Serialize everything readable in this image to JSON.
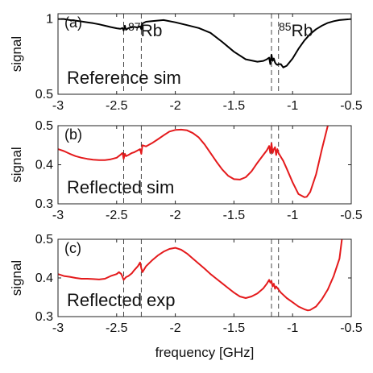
{
  "figure": {
    "xlabel": "frequency [GHz]",
    "annotations": {
      "rb87_mass": "87",
      "rb87_symbol": "Rb",
      "rb85_mass": "85",
      "rb85_symbol": "Rb"
    }
  },
  "chart_data": [
    {
      "type": "line",
      "panel_label": "(a)",
      "inset_label": "Reference sim",
      "ylabel": "signal",
      "xlim": [
        -3,
        -0.5
      ],
      "ylim": [
        0.5,
        1.05
      ],
      "yscale": "log",
      "xticks": [
        -3,
        -2.5,
        -2,
        -1.5,
        -1,
        -0.5
      ],
      "xtick_labels": [
        "-3",
        "-2.5",
        "-2",
        "-1.5",
        "-1",
        "-0.5"
      ],
      "yticks": [
        0.5,
        1
      ],
      "ytick_labels": [
        "0.5",
        "1"
      ],
      "color": "#000000",
      "reference_lines_ghz": [
        -2.44,
        -2.29,
        -1.18,
        -1.12
      ],
      "series": [
        {
          "x": [
            -3.0,
            -2.95,
            -2.9,
            -2.85,
            -2.8,
            -2.75,
            -2.7,
            -2.65,
            -2.6,
            -2.55,
            -2.5,
            -2.47,
            -2.45,
            -2.44,
            -2.43,
            -2.42,
            -2.4,
            -2.35,
            -2.32,
            -2.3,
            -2.29,
            -2.28,
            -2.25,
            -2.2,
            -2.1,
            -2.0,
            -1.9,
            -1.8,
            -1.7,
            -1.6,
            -1.5,
            -1.4,
            -1.3,
            -1.25,
            -1.22,
            -1.2,
            -1.19,
            -1.18,
            -1.17,
            -1.16,
            -1.15,
            -1.14,
            -1.13,
            -1.12,
            -1.1,
            -1.08,
            -1.05,
            -1.0,
            -0.95,
            -0.9,
            -0.85,
            -0.8,
            -0.75,
            -0.7,
            -0.65,
            -0.6,
            -0.55,
            -0.5
          ],
          "y": [
            1.0,
            1.0,
            0.99,
            0.985,
            0.978,
            0.97,
            0.962,
            0.952,
            0.94,
            0.928,
            0.918,
            0.913,
            0.92,
            0.9,
            0.94,
            0.905,
            0.92,
            0.93,
            0.925,
            0.935,
            0.91,
            0.96,
            0.975,
            0.98,
            0.99,
            0.97,
            0.945,
            0.92,
            0.88,
            0.81,
            0.74,
            0.69,
            0.675,
            0.68,
            0.69,
            0.7,
            0.66,
            0.72,
            0.68,
            0.695,
            0.67,
            0.66,
            0.655,
            0.66,
            0.66,
            0.64,
            0.65,
            0.695,
            0.76,
            0.82,
            0.87,
            0.91,
            0.94,
            0.965,
            0.98,
            0.99,
            0.995,
            1.0
          ]
        }
      ]
    },
    {
      "type": "line",
      "panel_label": "(b)",
      "inset_label": "Reflected sim",
      "ylabel": "signal",
      "xlim": [
        -3,
        -0.5
      ],
      "ylim": [
        0.3,
        0.5
      ],
      "xticks": [
        -3,
        -2.5,
        -2,
        -1.5,
        -1,
        -0.5
      ],
      "xtick_labels": [
        "-3",
        "-2.5",
        "-2",
        "-1.5",
        "-1",
        "-0.5"
      ],
      "yticks": [
        0.3,
        0.4,
        0.5
      ],
      "ytick_labels": [
        "0.3",
        "0.4",
        "0.5"
      ],
      "color": "#e41a1c",
      "reference_lines_ghz": [
        -2.44,
        -2.29,
        -1.18,
        -1.12
      ],
      "series": [
        {
          "x": [
            -3.0,
            -2.95,
            -2.9,
            -2.85,
            -2.8,
            -2.75,
            -2.7,
            -2.65,
            -2.6,
            -2.55,
            -2.5,
            -2.47,
            -2.45,
            -2.44,
            -2.43,
            -2.42,
            -2.4,
            -2.37,
            -2.35,
            -2.32,
            -2.3,
            -2.29,
            -2.28,
            -2.25,
            -2.2,
            -2.15,
            -2.1,
            -2.05,
            -2.0,
            -1.95,
            -1.9,
            -1.85,
            -1.8,
            -1.75,
            -1.7,
            -1.65,
            -1.6,
            -1.55,
            -1.5,
            -1.45,
            -1.4,
            -1.35,
            -1.3,
            -1.25,
            -1.22,
            -1.2,
            -1.19,
            -1.18,
            -1.17,
            -1.16,
            -1.15,
            -1.14,
            -1.13,
            -1.12,
            -1.1,
            -1.08,
            -1.05,
            -1.0,
            -0.95,
            -0.9,
            -0.88,
            -0.85,
            -0.8,
            -0.75,
            -0.7
          ],
          "y": [
            0.44,
            0.435,
            0.428,
            0.422,
            0.418,
            0.415,
            0.413,
            0.412,
            0.412,
            0.414,
            0.418,
            0.425,
            0.43,
            0.415,
            0.428,
            0.422,
            0.425,
            0.43,
            0.432,
            0.437,
            0.44,
            0.428,
            0.45,
            0.447,
            0.455,
            0.465,
            0.475,
            0.485,
            0.489,
            0.49,
            0.488,
            0.481,
            0.47,
            0.452,
            0.43,
            0.408,
            0.388,
            0.372,
            0.363,
            0.362,
            0.368,
            0.383,
            0.405,
            0.425,
            0.437,
            0.448,
            0.43,
            0.455,
            0.43,
            0.44,
            0.445,
            0.425,
            0.44,
            0.43,
            0.42,
            0.41,
            0.39,
            0.355,
            0.325,
            0.317,
            0.318,
            0.33,
            0.375,
            0.44,
            0.5
          ]
        }
      ]
    },
    {
      "type": "line",
      "panel_label": "(c)",
      "inset_label": "Reflected exp",
      "ylabel": "signal",
      "xlim": [
        -3,
        -0.5
      ],
      "ylim": [
        0.3,
        0.5
      ],
      "xticks": [
        -3,
        -2.5,
        -2,
        -1.5,
        -1,
        -0.5
      ],
      "xtick_labels": [
        "-3",
        "-2.5",
        "-2",
        "-1.5",
        "-1",
        "-0.5"
      ],
      "yticks": [
        0.3,
        0.4,
        0.5
      ],
      "ytick_labels": [
        "0.3",
        "0.4",
        "0.5"
      ],
      "color": "#e41a1c",
      "reference_lines_ghz": [
        -2.44,
        -2.29,
        -1.18,
        -1.12
      ],
      "series": [
        {
          "x": [
            -3.0,
            -2.95,
            -2.9,
            -2.85,
            -2.8,
            -2.75,
            -2.7,
            -2.65,
            -2.6,
            -2.55,
            -2.5,
            -2.48,
            -2.46,
            -2.44,
            -2.42,
            -2.4,
            -2.37,
            -2.35,
            -2.32,
            -2.3,
            -2.29,
            -2.28,
            -2.25,
            -2.2,
            -2.15,
            -2.1,
            -2.05,
            -2.0,
            -1.95,
            -1.9,
            -1.85,
            -1.8,
            -1.75,
            -1.7,
            -1.65,
            -1.6,
            -1.55,
            -1.5,
            -1.45,
            -1.4,
            -1.35,
            -1.3,
            -1.25,
            -1.22,
            -1.2,
            -1.19,
            -1.18,
            -1.17,
            -1.16,
            -1.15,
            -1.14,
            -1.12,
            -1.1,
            -1.05,
            -1.0,
            -0.95,
            -0.9,
            -0.87,
            -0.85,
            -0.8,
            -0.75,
            -0.7,
            -0.65,
            -0.6,
            -0.58
          ],
          "y": [
            0.41,
            0.405,
            0.403,
            0.4,
            0.398,
            0.398,
            0.397,
            0.396,
            0.398,
            0.405,
            0.41,
            0.415,
            0.41,
            0.395,
            0.402,
            0.405,
            0.412,
            0.42,
            0.43,
            0.44,
            0.425,
            0.415,
            0.43,
            0.445,
            0.458,
            0.468,
            0.475,
            0.478,
            0.473,
            0.463,
            0.45,
            0.437,
            0.424,
            0.41,
            0.398,
            0.386,
            0.374,
            0.362,
            0.352,
            0.348,
            0.352,
            0.36,
            0.373,
            0.385,
            0.395,
            0.388,
            0.392,
            0.378,
            0.385,
            0.372,
            0.378,
            0.37,
            0.362,
            0.348,
            0.337,
            0.326,
            0.319,
            0.316,
            0.317,
            0.326,
            0.345,
            0.37,
            0.405,
            0.45,
            0.5
          ]
        }
      ]
    }
  ]
}
